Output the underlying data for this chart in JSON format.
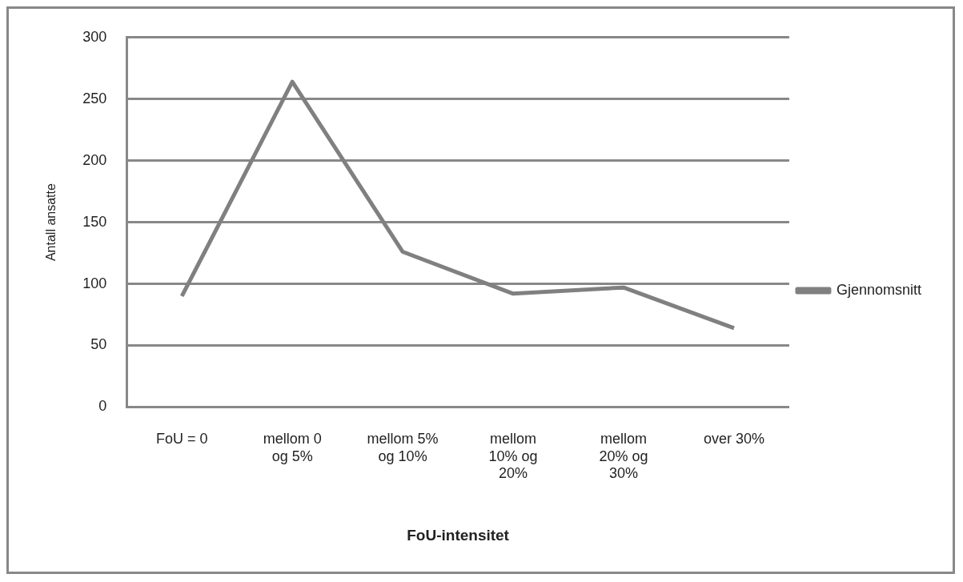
{
  "chart_data": {
    "type": "line",
    "xlabel": "FoU-intensitet",
    "ylabel": "Antall ansatte",
    "categories": [
      "FoU = 0",
      "mellom 0 og 5%",
      "mellom 5% og 10%",
      "mellom 10% og 20%",
      "mellom 20% og 30%",
      "over 30%"
    ],
    "series": [
      {
        "name": "Gjennomsnitt",
        "color": "#808080",
        "values": [
          90,
          264,
          126,
          92,
          97,
          64
        ]
      }
    ],
    "ylim": [
      0,
      300
    ],
    "yticks": [
      0,
      50,
      100,
      150,
      200,
      250,
      300
    ],
    "grid": "y",
    "legend": "right",
    "marker": "none",
    "line_style": "solid"
  }
}
